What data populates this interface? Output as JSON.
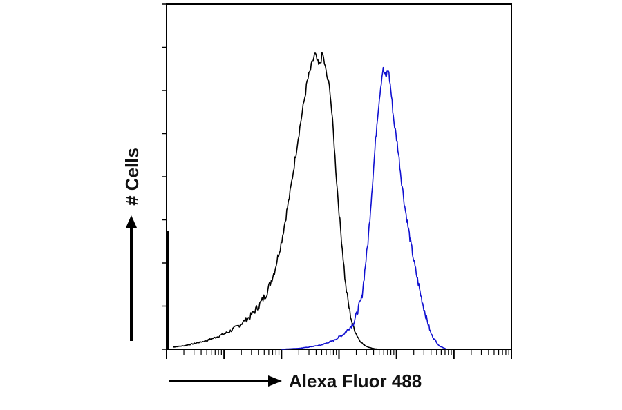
{
  "chart_data": {
    "type": "line",
    "title": "",
    "xlabel": "Alexa Fluor 488",
    "ylabel": "# Cells",
    "x_scale": "log",
    "xlim": [
      1,
      1000000
    ],
    "ylim": [
      0,
      8
    ],
    "grid": false,
    "legend": "none",
    "series": [
      {
        "color": "#000000",
        "x": [
          1.3,
          2,
          3,
          5,
          8,
          12,
          18,
          28,
          40,
          55,
          75,
          100,
          140,
          200,
          280,
          380,
          450,
          520,
          600,
          700,
          800,
          900,
          1000,
          1150,
          1300,
          1500,
          1700,
          2000,
          2300,
          2700,
          3100,
          3600,
          4200,
          5000,
          6500
        ],
        "y": [
          0.05,
          0.08,
          0.13,
          0.2,
          0.3,
          0.4,
          0.55,
          0.75,
          1.0,
          1.3,
          1.8,
          2.5,
          3.6,
          5.0,
          6.2,
          6.85,
          6.55,
          6.85,
          6.4,
          6.0,
          5.0,
          4.0,
          3.2,
          2.3,
          1.5,
          0.95,
          0.6,
          0.35,
          0.2,
          0.1,
          0.06,
          0.03,
          0.01,
          0.0,
          0.0
        ]
      },
      {
        "color": "#1010d0",
        "x": [
          100,
          200,
          300,
          500,
          800,
          1200,
          1800,
          2500,
          3200,
          3900,
          4600,
          5200,
          5800,
          6500,
          7200,
          8000,
          9000,
          10500,
          12000,
          14000,
          17000,
          21000,
          26000,
          32000,
          40000,
          55000,
          75000
        ],
        "y": [
          0.0,
          0.02,
          0.05,
          0.1,
          0.2,
          0.35,
          0.6,
          1.2,
          2.5,
          4.0,
          5.3,
          6.0,
          6.5,
          6.3,
          6.5,
          6.0,
          5.3,
          4.7,
          4.0,
          3.3,
          2.6,
          1.9,
          1.3,
          0.8,
          0.35,
          0.08,
          0.0
        ]
      }
    ]
  }
}
